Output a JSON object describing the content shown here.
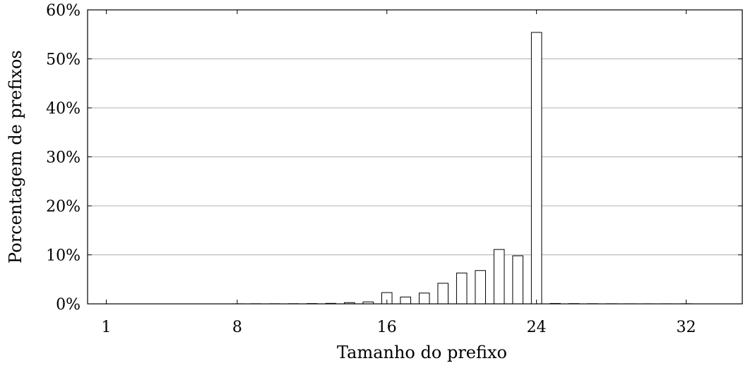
{
  "chart_data": {
    "type": "bar",
    "title": "",
    "xlabel": "Tamanho do prefixo",
    "ylabel": "Porcentagem de prefixos",
    "xlim": [
      0,
      35
    ],
    "ylim": [
      0,
      60
    ],
    "grid": "horizontal",
    "x": [
      1,
      2,
      3,
      4,
      5,
      6,
      7,
      8,
      9,
      10,
      11,
      12,
      13,
      14,
      15,
      16,
      17,
      18,
      19,
      20,
      21,
      22,
      23,
      24,
      25,
      26,
      27,
      28,
      29,
      30,
      31,
      32,
      33,
      34
    ],
    "values": [
      0,
      0,
      0,
      0,
      0,
      0,
      0,
      0.01,
      0.02,
      0.02,
      0.03,
      0.06,
      0.1,
      0.25,
      0.4,
      2.3,
      1.4,
      2.2,
      4.2,
      6.3,
      6.8,
      11.1,
      9.8,
      55.4,
      0.08,
      0.05,
      0.03,
      0.02,
      0.01,
      0.01,
      0.01,
      0.02,
      0,
      0
    ],
    "x_ticks": [
      1,
      8,
      16,
      24,
      32
    ],
    "x_tick_labels": [
      "1",
      "8",
      "16",
      "24",
      "32"
    ],
    "y_ticks": [
      0,
      10,
      20,
      30,
      40,
      50,
      60
    ],
    "y_tick_labels": [
      "0%",
      "10%",
      "20%",
      "30%",
      "40%",
      "50%",
      "60%"
    ],
    "series_color": "#ffffff",
    "stroke_color": "#000000",
    "grid_color": "#b0b0b0"
  }
}
